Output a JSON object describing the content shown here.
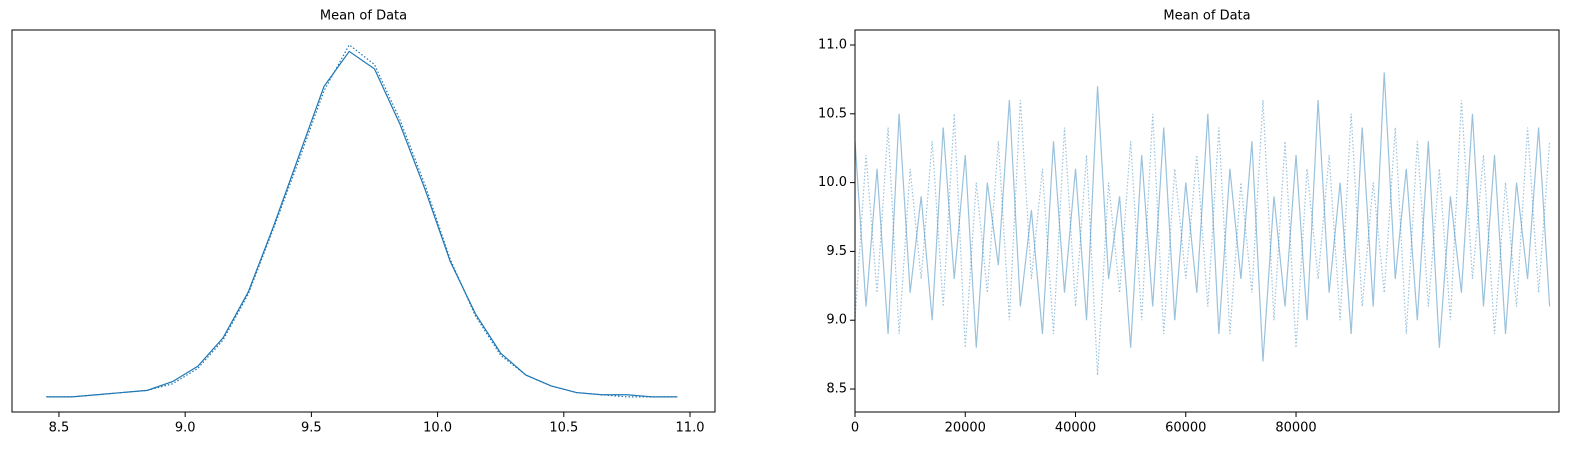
{
  "chart_data": [
    {
      "type": "line",
      "title": "Mean of Data",
      "x": [
        8.45,
        8.55,
        8.65,
        8.75,
        8.85,
        8.95,
        9.05,
        9.15,
        9.25,
        9.35,
        9.45,
        9.55,
        9.65,
        9.75,
        9.85,
        9.95,
        10.05,
        10.15,
        10.25,
        10.35,
        10.45,
        10.55,
        10.65,
        10.75,
        10.85,
        10.95
      ],
      "series": [
        {
          "color": "#1f77b4",
          "line_style": "solid",
          "values": [
            0.0,
            0.0,
            0.01,
            0.02,
            0.03,
            0.07,
            0.14,
            0.27,
            0.48,
            0.78,
            1.1,
            1.42,
            1.58,
            1.5,
            1.25,
            0.95,
            0.62,
            0.38,
            0.2,
            0.1,
            0.05,
            0.02,
            0.01,
            0.01,
            0.0,
            0.0
          ]
        },
        {
          "color": "#1f77b4",
          "line_style": "dotted",
          "values": [
            0.0,
            0.0,
            0.01,
            0.02,
            0.03,
            0.06,
            0.13,
            0.26,
            0.47,
            0.77,
            1.08,
            1.4,
            1.61,
            1.52,
            1.27,
            0.97,
            0.63,
            0.37,
            0.19,
            0.1,
            0.05,
            0.02,
            0.01,
            0.0,
            0.0,
            0.0
          ]
        }
      ],
      "xlim": [
        8.314,
        11.099
      ],
      "xticks": [
        8.5,
        {
          "value": 9,
          "label": "9.0"
        },
        9.5,
        {
          "value": 10,
          "label": "10.0"
        },
        10.5,
        {
          "value": 11,
          "label": "11.0"
        }
      ],
      "ylim": [
        -0.069,
        1.678
      ]
    },
    {
      "type": "line",
      "title": "Mean of Data",
      "x": [
        0,
        2000,
        4000,
        6000,
        8000,
        10000,
        12000,
        14000,
        16000,
        18000,
        20000,
        22000,
        24000,
        26000,
        28000,
        30000,
        32000,
        34000,
        36000,
        38000,
        40000,
        42000,
        44000,
        46000,
        48000,
        50000,
        52000,
        54000,
        56000,
        58000,
        60000,
        62000,
        64000,
        66000,
        68000,
        70000,
        72000,
        74000,
        76000,
        78000,
        80000,
        82000,
        84000,
        86000,
        88000,
        90000,
        92000,
        94000,
        96000,
        98000,
        100000,
        102000,
        104000,
        106000,
        108000,
        110000,
        112000,
        114000,
        116000,
        118000,
        120000,
        122000,
        124000,
        126000
      ],
      "series": [
        {
          "color": "#1f77b4",
          "line_style": "solid",
          "alpha": 0.45,
          "values": [
            10.3,
            9.1,
            10.1,
            8.9,
            10.5,
            9.2,
            9.9,
            9.0,
            10.4,
            9.3,
            10.2,
            8.8,
            10.0,
            9.4,
            10.6,
            9.1,
            9.8,
            8.9,
            10.3,
            9.2,
            10.1,
            9.0,
            10.7,
            9.3,
            9.9,
            8.8,
            10.2,
            9.1,
            10.4,
            9.0,
            10.0,
            9.2,
            10.5,
            8.9,
            10.1,
            9.3,
            10.3,
            8.7,
            9.9,
            9.1,
            10.2,
            9.0,
            10.6,
            9.2,
            10.0,
            8.9,
            10.4,
            9.1,
            10.8,
            9.3,
            10.1,
            9.0,
            10.3,
            8.8,
            9.9,
            9.2,
            10.5,
            9.1,
            10.2,
            8.9,
            10.0,
            9.3,
            10.4,
            9.1
          ]
        },
        {
          "color": "#1f77b4",
          "line_style": "dotted",
          "alpha": 0.45,
          "values": [
            9.0,
            10.2,
            9.2,
            10.4,
            8.9,
            10.1,
            9.3,
            10.3,
            9.1,
            10.5,
            8.8,
            10.0,
            9.2,
            10.3,
            9.0,
            10.6,
            9.3,
            10.1,
            8.9,
            10.4,
            9.1,
            10.2,
            8.6,
            10.0,
            9.2,
            10.3,
            9.0,
            10.5,
            8.9,
            10.1,
            9.3,
            10.2,
            9.1,
            10.4,
            8.9,
            10.0,
            9.2,
            10.6,
            9.0,
            10.3,
            8.8,
            10.1,
            9.3,
            10.2,
            9.0,
            10.5,
            9.1,
            10.0,
            9.2,
            10.4,
            8.9,
            10.3,
            9.1,
            10.1,
            9.0,
            10.6,
            9.3,
            10.2,
            8.9,
            10.0,
            9.1,
            10.4,
            9.2,
            10.3
          ]
        }
      ],
      "xlim": [
        0,
        127700
      ],
      "xticks": [
        0,
        20000,
        40000,
        60000,
        80000
      ],
      "ylim": [
        8.333,
        11.109
      ],
      "yticks": [
        8.5,
        {
          "value": 9,
          "label": "9.0"
        },
        9.5,
        {
          "value": 10,
          "label": "10.0"
        },
        10.5,
        {
          "value": 11,
          "label": "11.0"
        }
      ]
    }
  ]
}
